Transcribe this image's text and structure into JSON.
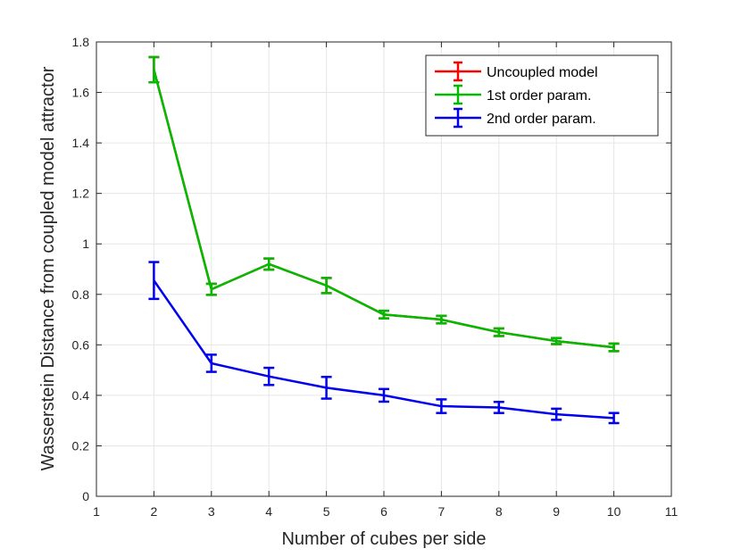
{
  "chart_data": {
    "type": "line",
    "title": "",
    "xlabel": "Number of cubes per side",
    "ylabel": "Wasserstein Distance from coupled model attractor",
    "xlim": [
      1,
      11
    ],
    "ylim": [
      0,
      1.8
    ],
    "xticks": [
      "1",
      "2",
      "3",
      "4",
      "5",
      "6",
      "7",
      "8",
      "9",
      "10",
      "11"
    ],
    "yticks": [
      "0",
      "0.2",
      "0.4",
      "0.6",
      "0.8",
      "1",
      "1.2",
      "1.4",
      "1.6",
      "1.8"
    ],
    "grid": true,
    "legend_position": "top-right",
    "x": [
      2,
      3,
      4,
      5,
      6,
      7,
      8,
      9,
      10
    ],
    "series": [
      {
        "name": "Uncoupled model",
        "color": "#ff0000",
        "values": [
          1.69,
          0.82,
          0.92,
          0.835,
          0.72,
          0.7,
          0.65,
          0.615,
          0.59
        ],
        "errors": [
          0.05,
          0.022,
          0.022,
          0.03,
          0.015,
          0.015,
          0.015,
          0.012,
          0.015
        ]
      },
      {
        "name": "1st order param.",
        "color": "#00bb00",
        "values": [
          1.69,
          0.82,
          0.92,
          0.835,
          0.72,
          0.7,
          0.65,
          0.615,
          0.59
        ],
        "errors": [
          0.05,
          0.022,
          0.022,
          0.03,
          0.015,
          0.015,
          0.015,
          0.012,
          0.015
        ]
      },
      {
        "name": "2nd order param.",
        "color": "#0000ee",
        "values": [
          0.855,
          0.527,
          0.475,
          0.43,
          0.4,
          0.357,
          0.352,
          0.325,
          0.31
        ],
        "errors": [
          0.073,
          0.034,
          0.034,
          0.043,
          0.025,
          0.027,
          0.022,
          0.022,
          0.02
        ]
      }
    ]
  }
}
